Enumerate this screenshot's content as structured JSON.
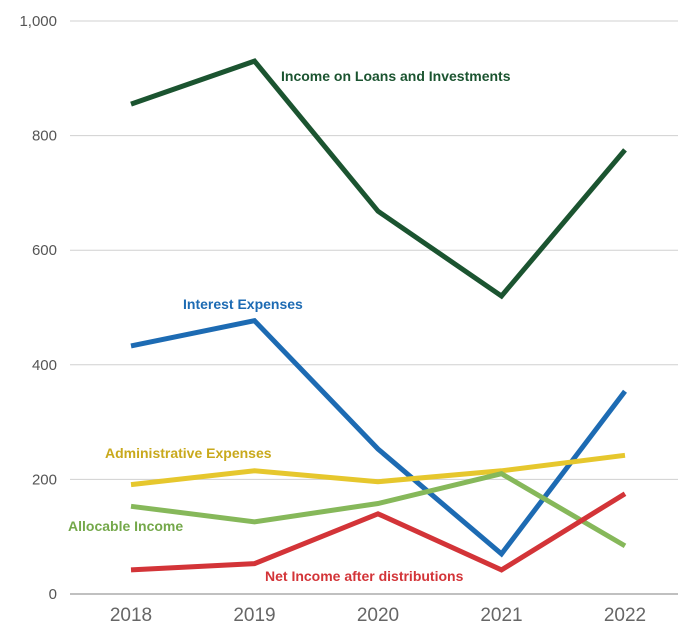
{
  "chart_data": {
    "type": "line",
    "title": "",
    "xlabel": "",
    "ylabel": "",
    "categories": [
      "2018",
      "2019",
      "2020",
      "2021",
      "2022"
    ],
    "ylim": [
      0,
      1000
    ],
    "yticks": [
      "0",
      "200",
      "400",
      "600",
      "800",
      "1,000"
    ],
    "grid": true,
    "legend": "inline labels",
    "series": [
      {
        "name": "Income on Loans and Investments",
        "color": "#1b5430",
        "values": [
          855,
          930,
          668,
          520,
          775
        ]
      },
      {
        "name": "Interest Expenses",
        "color": "#1d6bb3",
        "values": [
          433,
          477,
          253,
          70,
          354
        ]
      },
      {
        "name": "Administrative Expenses",
        "color": "#e6c72d",
        "values": [
          191,
          215,
          196,
          215,
          242
        ]
      },
      {
        "name": "Allocable Income",
        "color": "#86b85a",
        "values": [
          153,
          126,
          158,
          210,
          84
        ]
      },
      {
        "name": "Net Income after distributions",
        "color": "#d33438",
        "values": [
          42,
          53,
          140,
          42,
          175
        ]
      }
    ]
  }
}
